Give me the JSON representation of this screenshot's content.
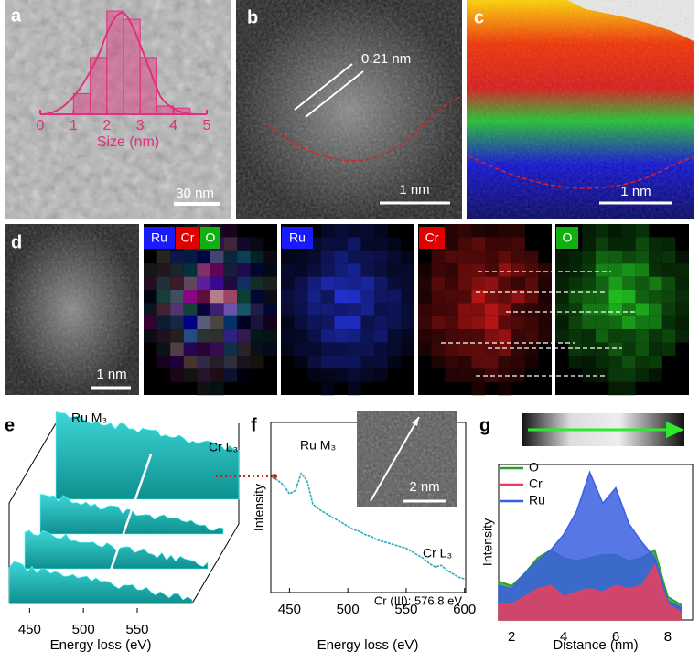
{
  "panels": {
    "a": {
      "label": "a",
      "scale_bar": "30 nm",
      "histogram": {
        "type": "histogram",
        "bins": [
          1,
          1.5,
          2,
          2.5,
          3,
          3.5,
          4,
          4.5
        ],
        "counts": [
          20,
          55,
          100,
          92,
          55,
          8,
          6
        ],
        "xlim": [
          0,
          5
        ],
        "xticks": [
          0,
          1,
          2,
          3,
          4,
          5
        ],
        "xlabel": "Size (nm)",
        "color": "#e0307f"
      }
    },
    "b": {
      "label": "b",
      "spacing": "0.21 nm",
      "scale_bar": "1 nm"
    },
    "c": {
      "label": "c",
      "scale_bar": "1 nm"
    },
    "d": {
      "label": "d",
      "elements": [
        "Ru",
        "Cr",
        "O"
      ],
      "scale_bar": "1 nm"
    },
    "e": {
      "label": "e",
      "peak_ru": "Ru M₃",
      "peak_cr": "Cr L₃",
      "xlim": [
        431,
        601
      ],
      "xticks": [
        450,
        500,
        550
      ],
      "xlabel": "Energy loss (eV)"
    },
    "f": {
      "label": "f",
      "type": "line",
      "peak_ru": "Ru M₃",
      "peak_cr": "Cr L₃",
      "inset_scale_bar": "2 nm",
      "note": "Cr (III): 576.8 eV",
      "xlabel": "Energy loss (eV)",
      "ylabel": "Intensity",
      "xlim": [
        434,
        601
      ],
      "xticks": [
        450,
        500,
        550,
        600
      ],
      "ylim": [
        0,
        100
      ],
      "color": "#2aaeb8",
      "spectrum": {
        "x": [
          435,
          440,
          445,
          450,
          455,
          460,
          465,
          470,
          475,
          480,
          485,
          490,
          495,
          500,
          505,
          510,
          515,
          520,
          525,
          530,
          535,
          540,
          545,
          550,
          555,
          560,
          565,
          570,
          575,
          580,
          585,
          590,
          595,
          600
        ],
        "values": [
          68,
          66,
          63,
          58,
          60,
          70,
          66,
          52,
          49,
          47,
          45,
          43,
          41,
          39,
          37,
          36,
          34,
          33,
          31,
          30,
          29,
          28,
          27,
          26,
          24,
          22,
          20,
          17,
          15,
          16,
          13,
          11,
          9,
          8
        ]
      }
    },
    "g": {
      "label": "g",
      "type": "area",
      "xlabel": "Distance (nm)",
      "ylabel": "Intensity",
      "xlim": [
        1.5,
        8.95
      ],
      "xticks": [
        2,
        4,
        6,
        8
      ],
      "ylim": [
        0,
        100
      ],
      "x": [
        1.5,
        2,
        2.5,
        3,
        3.5,
        4,
        4.5,
        5,
        5.5,
        6,
        6.5,
        7,
        7.5,
        8,
        8.5
      ],
      "series": [
        {
          "name": "O",
          "color": "#2e9a2e",
          "values": [
            25,
            22,
            30,
            40,
            45,
            40,
            38,
            40,
            42,
            42,
            38,
            40,
            45,
            15,
            10
          ]
        },
        {
          "name": "Cr",
          "color": "#e8405a",
          "values": [
            10,
            10,
            15,
            20,
            22,
            15,
            18,
            20,
            18,
            22,
            20,
            22,
            35,
            10,
            5
          ]
        },
        {
          "name": "Ru",
          "color": "#3a5fe0",
          "values": [
            22,
            20,
            30,
            38,
            45,
            55,
            70,
            95,
            75,
            85,
            62,
            50,
            40,
            12,
            8
          ]
        }
      ]
    }
  }
}
